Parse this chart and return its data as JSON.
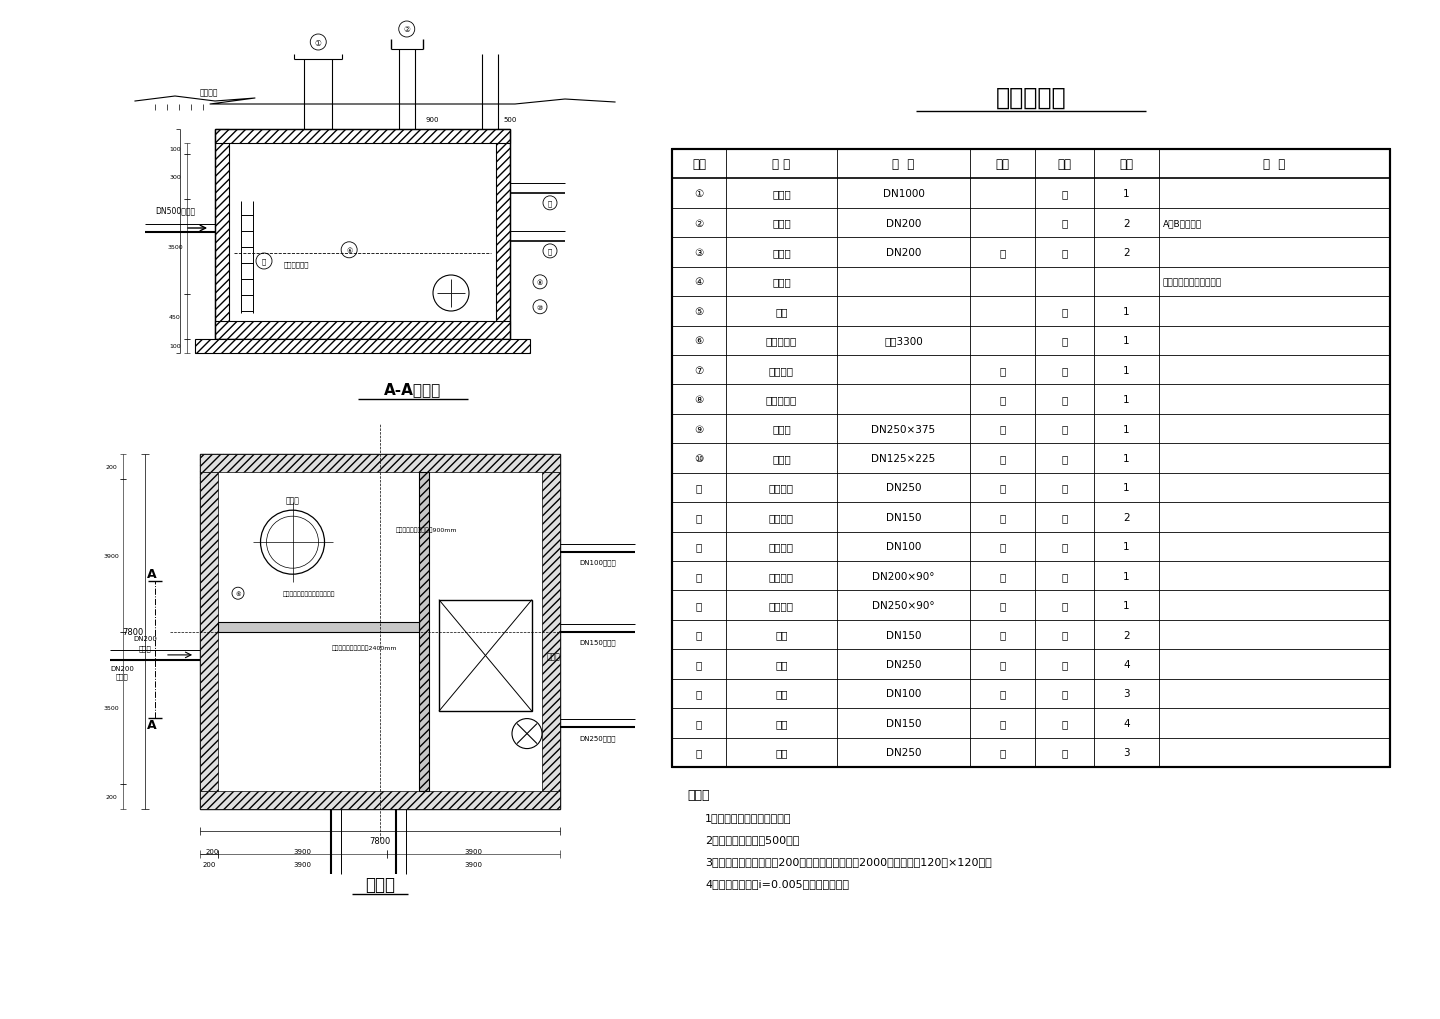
{
  "title": "工程数量表",
  "table_headers": [
    "编号",
    "名 称",
    "规  格",
    "材料",
    "单位",
    "数量",
    "备  注"
  ],
  "table_rows": [
    [
      "①",
      "检修孔",
      "DN1000",
      "",
      "只",
      "1",
      ""
    ],
    [
      "②",
      "通风帽",
      "DN200",
      "",
      "只",
      "2",
      "A型B型可任选"
    ],
    [
      "③",
      "通风管",
      "DN200",
      "钢",
      "根",
      "2",
      ""
    ],
    [
      "④",
      "集水坑",
      "",
      "",
      "",
      "",
      "钢筋数量按实际情况确定"
    ],
    [
      "⑤",
      "铁梯",
      "",
      "",
      "座",
      "1",
      ""
    ],
    [
      "⑥",
      "水位传示仪",
      "水深3300",
      "",
      "套",
      "1",
      ""
    ],
    [
      "⑦",
      "水管吊架",
      "",
      "钢",
      "付",
      "1",
      ""
    ],
    [
      "⑧",
      "喇叭口支架",
      "",
      "钢",
      "只",
      "1",
      ""
    ],
    [
      "⑨",
      "喇叭口",
      "DN250×375",
      "钢",
      "只",
      "1",
      ""
    ],
    [
      "⑩",
      "喇叭口",
      "DN125×225",
      "钢",
      "只",
      "1",
      ""
    ],
    [
      "⑪",
      "穿墙套管",
      "DN250",
      "钢",
      "只",
      "1",
      ""
    ],
    [
      "⑫",
      "穿墙套管",
      "DN150",
      "钢",
      "只",
      "2",
      ""
    ],
    [
      "⑬",
      "穿墙套管",
      "DN100",
      "钢",
      "只",
      "1",
      ""
    ],
    [
      "⑭",
      "钢制弯头",
      "DN200×90°",
      "钢",
      "只",
      "1",
      ""
    ],
    [
      "⑮",
      "钢制弯头",
      "DN250×90°",
      "钢",
      "只",
      "1",
      ""
    ],
    [
      "⑯",
      "法兰",
      "DN150",
      "钢",
      "片",
      "2",
      ""
    ],
    [
      "⑰",
      "法兰",
      "DN250",
      "钢",
      "片",
      "4",
      ""
    ],
    [
      "⑱",
      "钢管",
      "DN100",
      "钢",
      "米",
      "3",
      ""
    ],
    [
      "⑲",
      "钢管",
      "DN150",
      "钢",
      "米",
      "4",
      ""
    ],
    [
      "⑳",
      "钢管",
      "DN250",
      "钢",
      "米",
      "3",
      ""
    ]
  ],
  "notes_title": "说明：",
  "notes": [
    "1、本图尺寸单位均以㎜计。",
    "2、池顶复土高度为500㎜。",
    "3、导流墙顶距池顶板底200㎜，导流墙底部每隔2000㎜开流水孔120㎜×120㎜。",
    "4、池底排水坡定i=0.005，坡向集水坑。"
  ],
  "section_title": "A-A剖面图",
  "plan_title": "平面图",
  "bg_color": "#ffffff",
  "line_color": "#000000"
}
